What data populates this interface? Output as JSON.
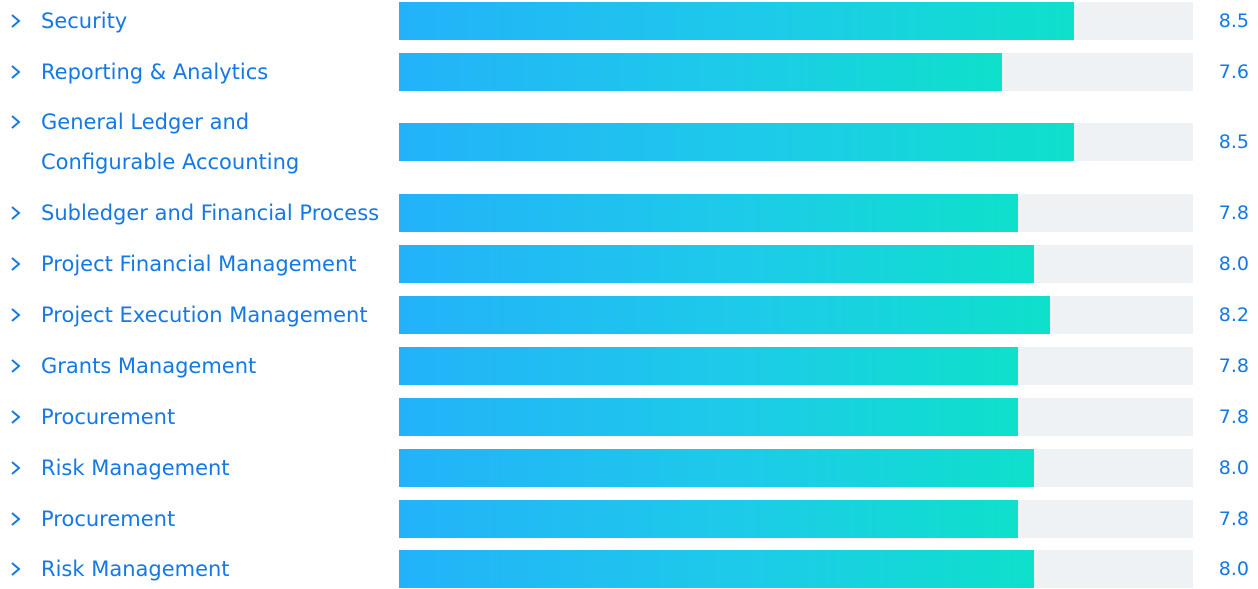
{
  "colors": {
    "label": "#1479e6",
    "track": "#eff2f5",
    "bar_start": "#23b2f9",
    "bar_end": "#0ee0cb"
  },
  "scale_max": 10,
  "rows": [
    {
      "label": "Security",
      "score": "8.5",
      "value": 8.5,
      "icon": "chevron-right-icon"
    },
    {
      "label": "Reporting & Analytics",
      "score": "7.6",
      "value": 7.6,
      "icon": "chevron-right-icon"
    },
    {
      "label": "General Ledger and\nConfigurable Accounting",
      "score": "8.5",
      "value": 8.5,
      "icon": "chevron-right-icon"
    },
    {
      "label": "Subledger and Financial Process",
      "score": "7.8",
      "value": 7.8,
      "icon": "chevron-right-icon"
    },
    {
      "label": "Project Financial Management",
      "score": "8.0",
      "value": 8.0,
      "icon": "chevron-right-icon"
    },
    {
      "label": "Project Execution Management",
      "score": "8.2",
      "value": 8.2,
      "icon": "chevron-right-icon"
    },
    {
      "label": "Grants Management",
      "score": "7.8",
      "value": 7.8,
      "icon": "chevron-right-icon"
    },
    {
      "label": "Procurement",
      "score": "7.8",
      "value": 7.8,
      "icon": "chevron-right-icon"
    },
    {
      "label": "Risk Management",
      "score": "8.0",
      "value": 8.0,
      "icon": "chevron-right-icon"
    },
    {
      "label": "Procurement",
      "score": "7.8",
      "value": 7.8,
      "icon": "chevron-right-icon"
    },
    {
      "label": "Risk Management",
      "score": "8.0",
      "value": 8.0,
      "icon": "chevron-right-icon"
    }
  ]
}
